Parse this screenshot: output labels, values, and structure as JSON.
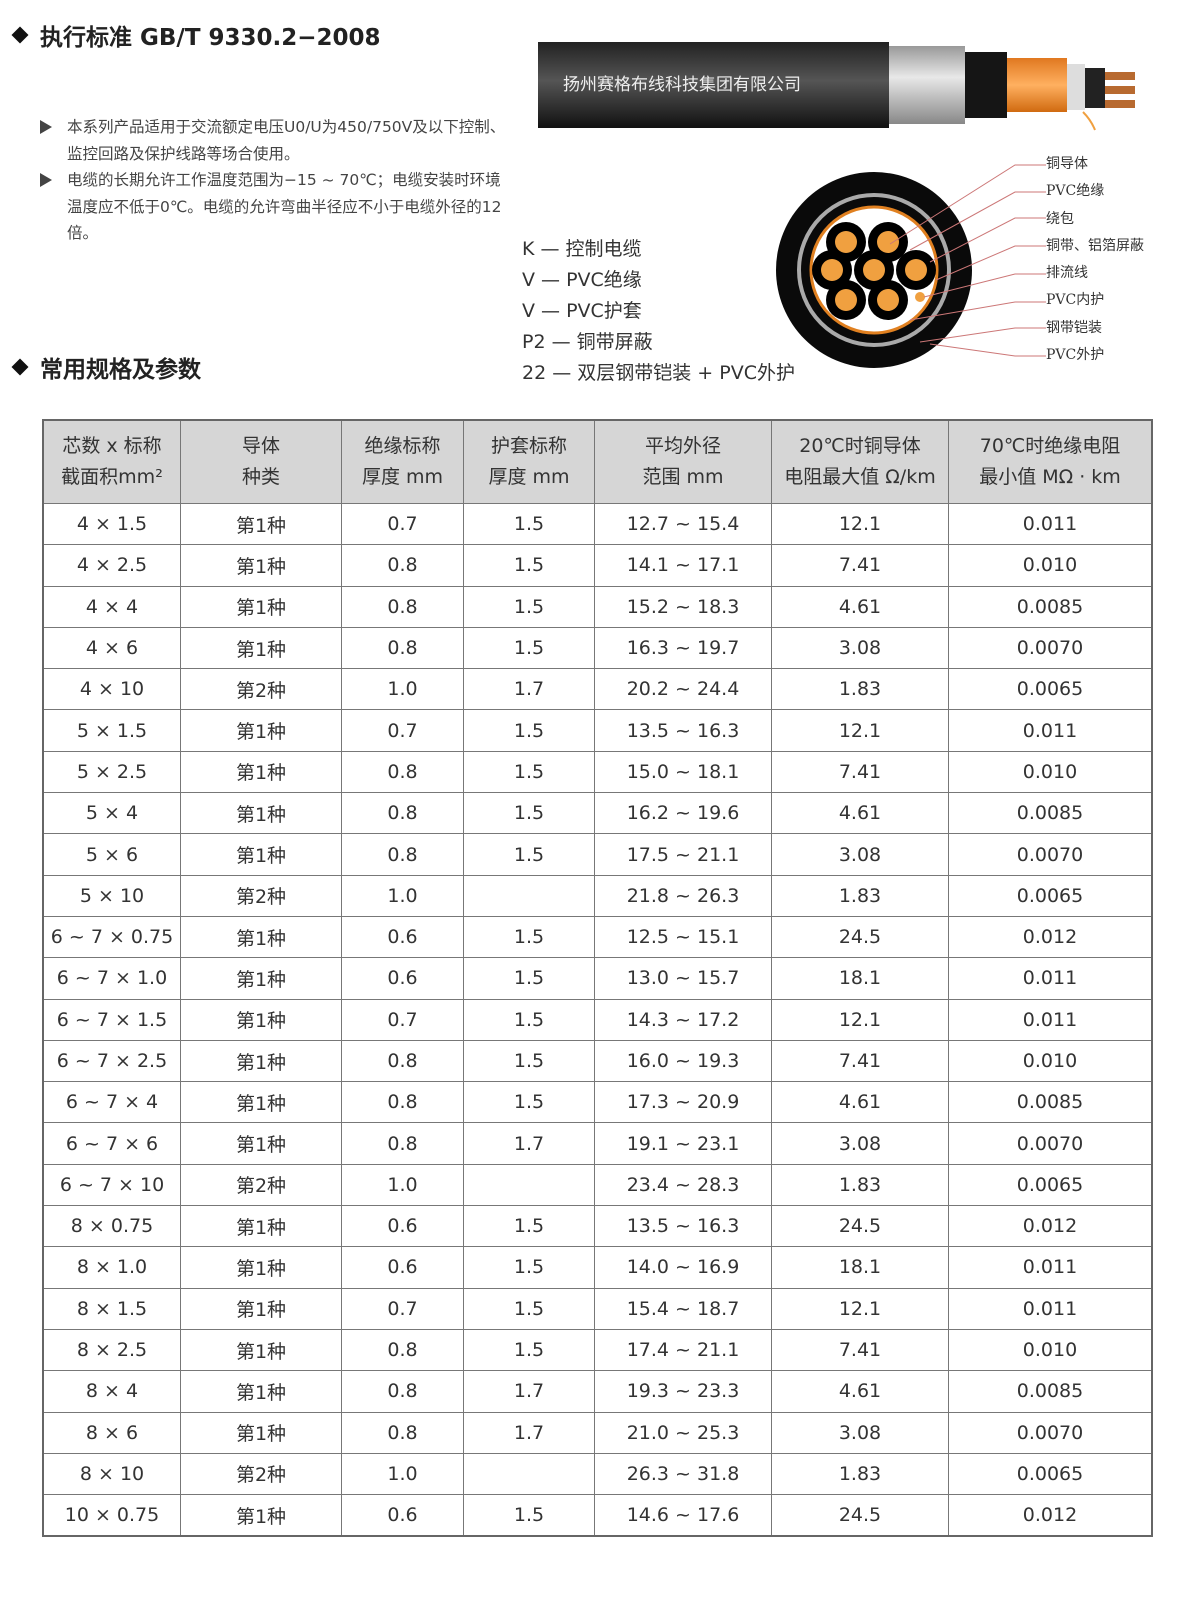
{
  "heading_standard": "执行标准 GB/T 9330.2−2008",
  "bullets": [
    "本系列产品适用于交流额定电压U0/U为450/750V及以下控制、监控回路及保护线路等场合使用。",
    "电缆的长期允许工作温度范围为−15 ~ 70℃；电缆安装时环境温度应不低于0℃。电缆的允许弯曲半径应不小于电缆外径的12倍。"
  ],
  "cable_brand": "扬州赛格布线科技集团有限公司",
  "codes": [
    "K — 控制电缆",
    "V — PVC绝缘",
    "V — PVC护套",
    "P2 — 铜带屏蔽",
    "22 — 双层钢带铠装 + PVC外护"
  ],
  "layer_labels": [
    "铜导体",
    "PVC绝缘",
    "绕包",
    "铜带、铝箔屏蔽",
    "排流线",
    "PVC内护",
    "钢带铠装",
    "PVC外护"
  ],
  "heading_specs": "常用规格及参数",
  "colors": {
    "header_bg": "#d6d6d6",
    "copper": "#f0a040",
    "sheath": "#111111"
  },
  "table": {
    "headers": [
      [
        "芯数 x 标称",
        "截面积mm²"
      ],
      [
        "导体",
        "种类"
      ],
      [
        "绝缘标称",
        "厚度 mm"
      ],
      [
        "护套标称",
        "厚度 mm"
      ],
      [
        "平均外径",
        "范围 mm"
      ],
      [
        "20℃时铜导体",
        "电阻最大值 Ω/km"
      ],
      [
        "70℃时绝缘电阻",
        "最小值 MΩ · km"
      ]
    ],
    "rows": [
      [
        "4 × 1.5",
        "第1种",
        "0.7",
        "1.5",
        "12.7 ~ 15.4",
        "12.1",
        "0.011"
      ],
      [
        "4 × 2.5",
        "第1种",
        "0.8",
        "1.5",
        "14.1 ~ 17.1",
        "7.41",
        "0.010"
      ],
      [
        "4 × 4",
        "第1种",
        "0.8",
        "1.5",
        "15.2 ~ 18.3",
        "4.61",
        "0.0085"
      ],
      [
        "4 × 6",
        "第1种",
        "0.8",
        "1.5",
        "16.3 ~ 19.7",
        "3.08",
        "0.0070"
      ],
      [
        "4 × 10",
        "第2种",
        "1.0",
        "1.7",
        "20.2 ~ 24.4",
        "1.83",
        "0.0065"
      ],
      [
        "5 × 1.5",
        "第1种",
        "0.7",
        "1.5",
        "13.5 ~ 16.3",
        "12.1",
        "0.011"
      ],
      [
        "5 × 2.5",
        "第1种",
        "0.8",
        "1.5",
        "15.0 ~ 18.1",
        "7.41",
        "0.010"
      ],
      [
        "5 × 4",
        "第1种",
        "0.8",
        "1.5",
        "16.2 ~ 19.6",
        "4.61",
        "0.0085"
      ],
      [
        "5 × 6",
        "第1种",
        "0.8",
        "1.5",
        "17.5 ~ 21.1",
        "3.08",
        "0.0070"
      ],
      [
        "5 × 10",
        "第2种",
        "1.0",
        "",
        "21.8 ~ 26.3",
        "1.83",
        "0.0065"
      ],
      [
        "6 ~ 7 × 0.75",
        "第1种",
        "0.6",
        "1.5",
        "12.5 ~ 15.1",
        "24.5",
        "0.012"
      ],
      [
        "6 ~ 7 × 1.0",
        "第1种",
        "0.6",
        "1.5",
        "13.0 ~ 15.7",
        "18.1",
        "0.011"
      ],
      [
        "6 ~ 7 × 1.5",
        "第1种",
        "0.7",
        "1.5",
        "14.3 ~ 17.2",
        "12.1",
        "0.011"
      ],
      [
        "6 ~ 7 × 2.5",
        "第1种",
        "0.8",
        "1.5",
        "16.0 ~ 19.3",
        "7.41",
        "0.010"
      ],
      [
        "6 ~ 7 × 4",
        "第1种",
        "0.8",
        "1.5",
        "17.3 ~ 20.9",
        "4.61",
        "0.0085"
      ],
      [
        "6 ~ 7 × 6",
        "第1种",
        "0.8",
        "1.7",
        "19.1 ~ 23.1",
        "3.08",
        "0.0070"
      ],
      [
        "6 ~ 7 × 10",
        "第2种",
        "1.0",
        "",
        "23.4 ~ 28.3",
        "1.83",
        "0.0065"
      ],
      [
        "8 × 0.75",
        "第1种",
        "0.6",
        "1.5",
        "13.5 ~ 16.3",
        "24.5",
        "0.012"
      ],
      [
        "8 × 1.0",
        "第1种",
        "0.6",
        "1.5",
        "14.0 ~ 16.9",
        "18.1",
        "0.011"
      ],
      [
        "8 × 1.5",
        "第1种",
        "0.7",
        "1.5",
        "15.4 ~ 18.7",
        "12.1",
        "0.011"
      ],
      [
        "8 × 2.5",
        "第1种",
        "0.8",
        "1.5",
        "17.4 ~ 21.1",
        "7.41",
        "0.010"
      ],
      [
        "8 × 4",
        "第1种",
        "0.8",
        "1.7",
        "19.3 ~ 23.3",
        "4.61",
        "0.0085"
      ],
      [
        "8 × 6",
        "第1种",
        "0.8",
        "1.7",
        "21.0 ~ 25.3",
        "3.08",
        "0.0070"
      ],
      [
        "8 × 10",
        "第2种",
        "1.0",
        "",
        "26.3 ~ 31.8",
        "1.83",
        "0.0065"
      ],
      [
        "10 × 0.75",
        "第1种",
        "0.6",
        "1.5",
        "14.6 ~ 17.6",
        "24.5",
        "0.012"
      ]
    ]
  }
}
